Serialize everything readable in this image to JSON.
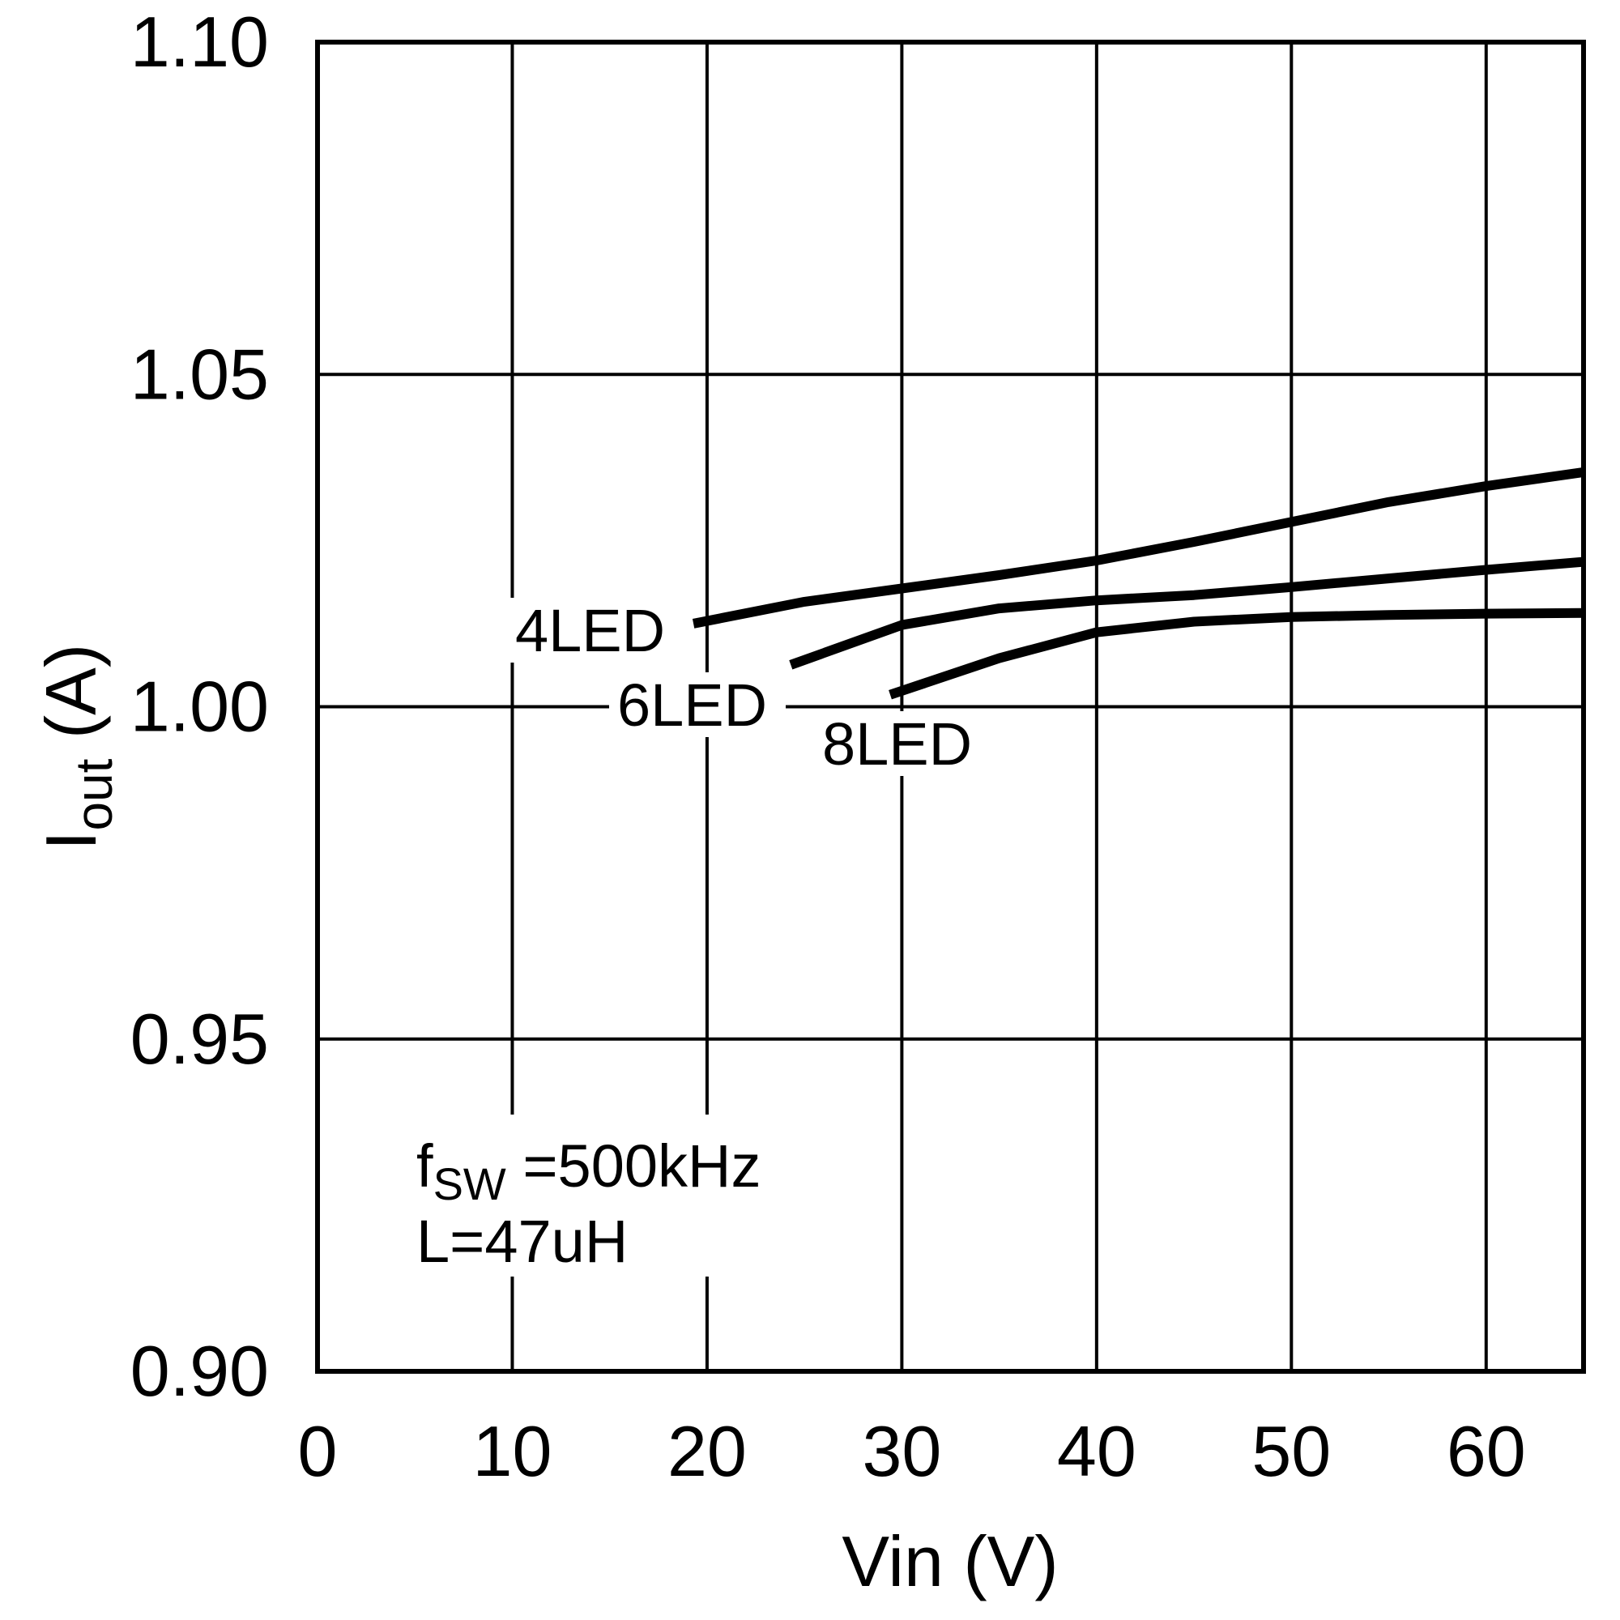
{
  "chart_data": {
    "type": "line",
    "xlabel": "Vin (V)",
    "ylabel_main": "I",
    "ylabel_sub": "out",
    "ylabel_unit": " (A)",
    "xlim": [
      0,
      65
    ],
    "ylim": [
      0.9,
      1.1
    ],
    "x_ticks": [
      {
        "value": 0,
        "label": "0"
      },
      {
        "value": 10,
        "label": "10"
      },
      {
        "value": 20,
        "label": "20"
      },
      {
        "value": 30,
        "label": "30"
      },
      {
        "value": 40,
        "label": "40"
      },
      {
        "value": 50,
        "label": "50"
      },
      {
        "value": 60,
        "label": "60"
      }
    ],
    "y_ticks": [
      {
        "value": 0.9,
        "label": "0.90"
      },
      {
        "value": 0.95,
        "label": "0.95"
      },
      {
        "value": 1.0,
        "label": "1.00"
      },
      {
        "value": 1.05,
        "label": "1.05"
      },
      {
        "value": 1.1,
        "label": "1.10"
      }
    ],
    "grid": true,
    "series": [
      {
        "name": "4LED",
        "x": [
          19.3,
          25,
          30,
          35,
          40,
          45,
          50,
          55,
          60,
          65
        ],
        "y": [
          1.0125,
          1.0158,
          1.0178,
          1.0198,
          1.022,
          1.0248,
          1.0278,
          1.0308,
          1.0332,
          1.0353
        ]
      },
      {
        "name": "6LED",
        "x": [
          24.3,
          30,
          35,
          40,
          45,
          50,
          55,
          60,
          65
        ],
        "y": [
          1.0063,
          1.0123,
          1.0148,
          1.016,
          1.0168,
          1.018,
          1.0193,
          1.0206,
          1.0218
        ]
      },
      {
        "name": "8LED",
        "x": [
          29.4,
          35,
          40,
          45,
          50,
          55,
          60,
          65
        ],
        "y": [
          1.0018,
          1.0073,
          1.0112,
          1.0128,
          1.0135,
          1.0138,
          1.014,
          1.0141
        ]
      }
    ],
    "annotations": {
      "f_main": "f",
      "f_sub": "SW",
      "f_rest": " =500kHz",
      "inductance": "L=47uH"
    }
  }
}
